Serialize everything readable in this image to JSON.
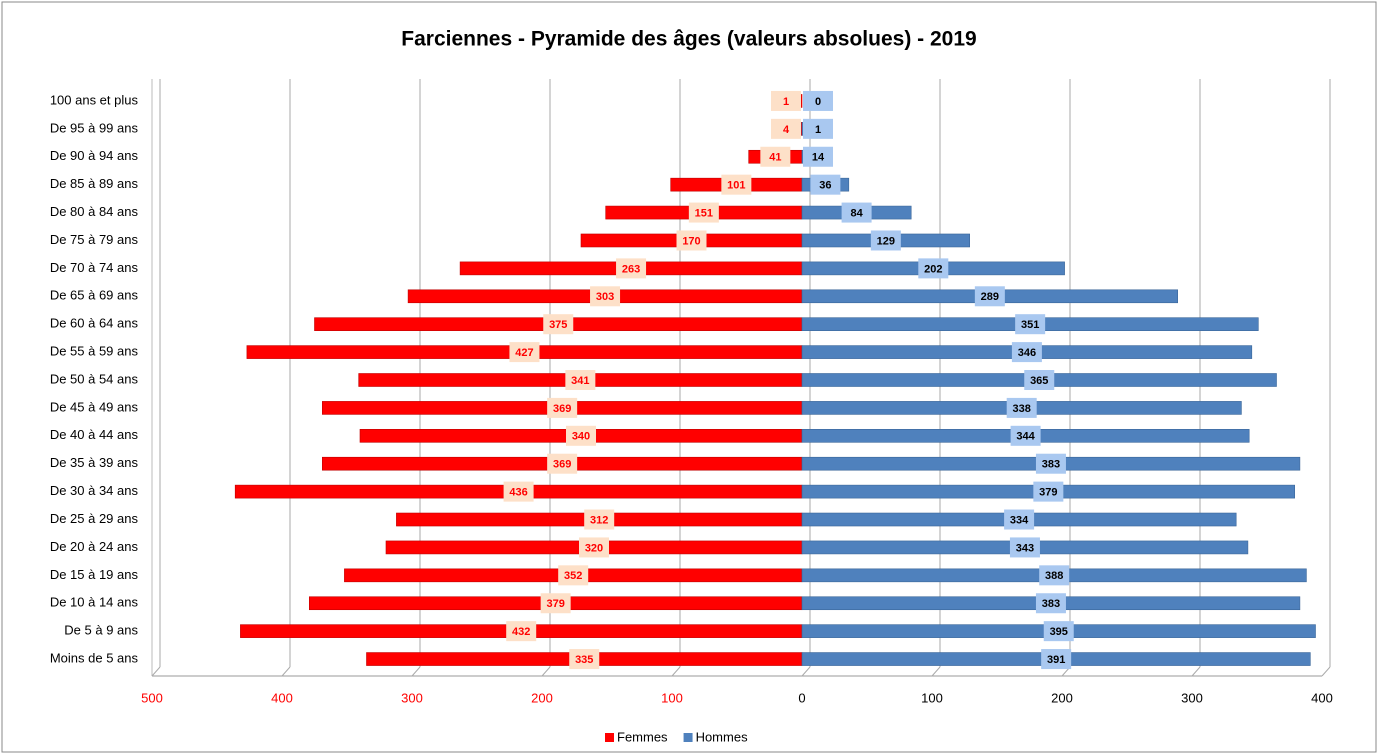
{
  "chart_data": {
    "type": "bar",
    "orientation": "horizontal",
    "title": "Farciennes - Pyramide des âges  (valeurs absolues) - 2019",
    "categories": [
      "100 ans et plus",
      "De 95 à 99 ans",
      "De 90 à 94 ans",
      "De 85 à 89 ans",
      "De 80 à 84 ans",
      "De 75 à 79 ans",
      "De 70 à 74 ans",
      "De 65 à 69 ans",
      "De 60 à 64 ans",
      "De 55 à 59 ans",
      "De 50 à 54 ans",
      "De 45 à 49 ans",
      "De 40 à 44 ans",
      "De 35 à 39 ans",
      "De 30 à 34 ans",
      "De 25 à 29 ans",
      "De 20 à 24 ans",
      "De 15 à 19 ans",
      "De 10 à 14 ans",
      "De 5 à 9 ans",
      "Moins de 5 ans"
    ],
    "series": [
      {
        "name": "Femmes",
        "color": "#ff0000",
        "values": [
          -1,
          -4,
          -41,
          -101,
          -151,
          -170,
          -263,
          -303,
          -375,
          -427,
          -341,
          -369,
          -340,
          -369,
          -436,
          -312,
          -320,
          -352,
          -379,
          -432,
          -335
        ],
        "value_labels": [
          "1",
          "4",
          "41",
          "101",
          "151",
          "170",
          "263",
          "303",
          "375",
          "427",
          "341",
          "369",
          "340",
          "369",
          "436",
          "312",
          "320",
          "352",
          "379",
          "432",
          "335"
        ]
      },
      {
        "name": "Hommes",
        "color": "#4f81bd",
        "values": [
          0,
          1,
          14,
          36,
          84,
          129,
          202,
          289,
          351,
          346,
          365,
          338,
          344,
          383,
          379,
          334,
          343,
          388,
          383,
          395,
          391
        ]
      }
    ],
    "xlim": [
      -500,
      400
    ],
    "xticks": [
      {
        "value": -500,
        "label": "500"
      },
      {
        "value": -400,
        "label": "400"
      },
      {
        "value": -300,
        "label": "300"
      },
      {
        "value": -200,
        "label": "200"
      },
      {
        "value": -100,
        "label": "100"
      },
      0,
      100,
      200,
      300,
      400
    ],
    "grid": true,
    "legend": "bottom"
  }
}
